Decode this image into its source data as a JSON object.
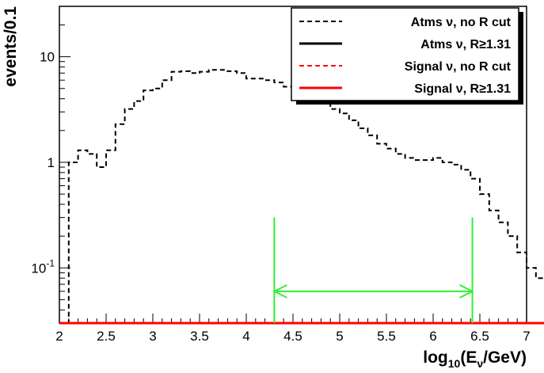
{
  "chart_data": {
    "type": "line",
    "style": "step histogram",
    "xlabel": "log10(Eν/GeV)",
    "xlabel_parts": {
      "main": "log",
      "sub1": "10",
      "open": "(E",
      "sub2": "ν",
      "close": "/GeV)"
    },
    "ylabel": "events/0.1",
    "xlim": [
      2,
      7
    ],
    "ylim": [
      0.03,
      30
    ],
    "yscale": "log",
    "bin_width": 0.1,
    "xticks": [
      2,
      2.5,
      3,
      3.5,
      4,
      4.5,
      5,
      5.5,
      6,
      6.5,
      7
    ],
    "xtick_labels": [
      "2",
      "2.5",
      "3",
      "3.5",
      "4",
      "4.5",
      "5",
      "5.5",
      "6",
      "6.5",
      "7"
    ],
    "yticks": [
      {
        "value": 0.1,
        "base": "10",
        "exp": "-1"
      },
      {
        "value": 1,
        "base": "1",
        "exp": ""
      },
      {
        "value": 10,
        "base": "10",
        "exp": ""
      }
    ],
    "legend_position": "top-right",
    "series": [
      {
        "name": "Atms ν, no R cut",
        "color": "#000000",
        "dashed": true,
        "values": [
          0.03,
          1,
          1.3,
          1.2,
          0.9,
          1.3,
          2.3,
          3.2,
          3.8,
          4.8,
          5,
          6,
          7.2,
          7.3,
          7,
          7.2,
          7.5,
          7.5,
          7.3,
          7,
          6.2,
          6.2,
          6,
          5.7,
          5.2,
          4.7,
          4.5,
          4.2,
          3.7,
          3.2,
          2.9,
          2.5,
          2.1,
          1.8,
          1.5,
          1.35,
          1.2,
          1.1,
          1.05,
          1.05,
          1.1,
          1,
          0.95,
          0.85,
          0.7,
          0.5,
          0.35,
          0.27,
          0.2,
          0.14,
          0.1,
          0.08,
          0.06,
          0.05,
          0.05,
          0.04,
          0.04,
          0.03,
          0.03,
          0.03,
          0.03,
          0.03,
          0.03,
          0.03,
          0.03,
          0.03,
          0.03,
          0.03,
          0.03,
          0.03,
          0.03,
          0.03,
          0.03,
          0.03,
          0.03,
          0.03,
          0.03,
          0.03,
          0.03,
          0.03,
          0.03,
          0.03,
          0.03,
          0.03,
          0.03,
          0.03,
          0.03,
          0.03,
          0.03,
          0.03,
          0.03,
          0.03,
          0.03,
          0.03,
          0.03,
          0.03,
          0.03,
          0.03,
          0.03,
          0.03
        ]
      },
      {
        "name": "Atms ν, R≥1.31",
        "color": "#000000",
        "dashed": false,
        "values": [
          0.03,
          0.03,
          0.03,
          0.03,
          0.03,
          0.03,
          0.03,
          0.03,
          0.03,
          0.03,
          0.03,
          0.03,
          0.03,
          0.03,
          0.03,
          0.03,
          0.03,
          0.03,
          0.03,
          0.03,
          0.03,
          0.03,
          0.03,
          0.03,
          0.03,
          0.03,
          0.03,
          0.03,
          0.03,
          0.03,
          0.03,
          0.03,
          0.03,
          0.03,
          0.03,
          0.03,
          0.03,
          0.03,
          0.03,
          0.03,
          0.03,
          0.03,
          0.03,
          0.03,
          0.03,
          0.03,
          0.03,
          0.03,
          0.03,
          0.03,
          0.03,
          0.03,
          0.03,
          0.03,
          0.03,
          0.03,
          0.03,
          0.03,
          0.03,
          0.03,
          0.03,
          0.03,
          0.03,
          0.03,
          0.03,
          0.03,
          0.03,
          0.03,
          0.03,
          0.03,
          0.03,
          0.03,
          0.03,
          0.03,
          0.03,
          0.03,
          0.03,
          0.03,
          0.03,
          0.03,
          0.03,
          0.03,
          0.03,
          0.03,
          0.03,
          0.03,
          0.03,
          0.03,
          0.03,
          0.03,
          0.03,
          0.03,
          0.03,
          0.03,
          0.03,
          0.03,
          0.03,
          0.03,
          0.03,
          0.03
        ]
      },
      {
        "name": "Signal ν, no R cut",
        "color": "#ff0000",
        "dashed": true,
        "values": [
          0.03,
          0.03,
          0.03,
          0.03,
          0.03,
          0.03,
          0.03,
          0.03,
          0.03,
          0.03,
          0.03,
          0.03,
          0.03,
          0.03,
          0.03,
          0.03,
          0.03,
          0.03,
          0.03,
          0.03,
          0.03,
          0.03,
          0.03,
          0.03,
          0.03,
          0.03,
          0.03,
          0.03,
          0.03,
          0.03,
          0.03,
          0.03,
          0.03,
          0.03,
          0.03,
          0.03,
          0.03,
          0.03,
          0.03,
          0.03,
          0.03,
          0.03,
          0.03,
          0.03,
          0.03,
          0.03,
          0.03,
          0.03,
          0.03,
          0.03,
          0.03,
          0.03,
          0.03,
          0.03,
          0.03,
          0.03,
          0.03,
          0.03,
          0.03,
          0.03,
          0.03,
          0.03,
          0.03,
          0.03,
          0.03,
          0.03,
          0.03,
          0.03,
          0.03,
          0.03,
          0.03,
          0.03,
          0.03,
          0.03,
          0.03,
          0.03,
          0.03,
          0.03,
          0.03,
          0.03,
          0.03,
          0.03,
          0.03,
          0.03,
          0.03,
          0.03,
          0.03,
          0.03,
          0.03,
          0.03,
          0.03,
          0.03,
          0.03,
          0.03,
          0.03,
          0.03,
          0.03,
          0.03,
          0.03,
          0.03
        ]
      },
      {
        "name": "Signal ν, R≥1.31",
        "color": "#ff0000",
        "dashed": false,
        "values": [
          0.03,
          0.03,
          0.03,
          0.03,
          0.03,
          0.03,
          0.03,
          0.03,
          0.03,
          0.03,
          0.03,
          0.03,
          0.03,
          0.03,
          0.03,
          0.03,
          0.03,
          0.03,
          0.03,
          0.03,
          0.03,
          0.03,
          0.03,
          0.03,
          0.03,
          0.03,
          0.03,
          0.03,
          0.03,
          0.03,
          0.03,
          0.03,
          0.03,
          0.03,
          0.03,
          0.03,
          0.03,
          0.03,
          0.03,
          0.03,
          0.03,
          0.03,
          0.03,
          0.03,
          0.03,
          0.03,
          0.03,
          0.03,
          0.03,
          0.03,
          0.03,
          0.03,
          0.03,
          0.03,
          0.03,
          0.03,
          0.03,
          0.03,
          0.03,
          0.03,
          0.03,
          0.03,
          0.03,
          0.03,
          0.03,
          0.03,
          0.03,
          0.03,
          0.03,
          0.03,
          0.03,
          0.03,
          0.03,
          0.03,
          0.03,
          0.03,
          0.03,
          0.03,
          0.03,
          0.03,
          0.03,
          0.03,
          0.03,
          0.03,
          0.03,
          0.03,
          0.03,
          0.03,
          0.03,
          0.03,
          0.03,
          0.03,
          0.03,
          0.03,
          0.03,
          0.03,
          0.03,
          0.03,
          0.03,
          0.03
        ]
      }
    ],
    "annotations": [
      {
        "type": "double-arrow",
        "color": "#33ee33",
        "x_from": 4.3,
        "x_to": 6.42,
        "y": 0.06,
        "bar_top": 0.3
      }
    ]
  }
}
